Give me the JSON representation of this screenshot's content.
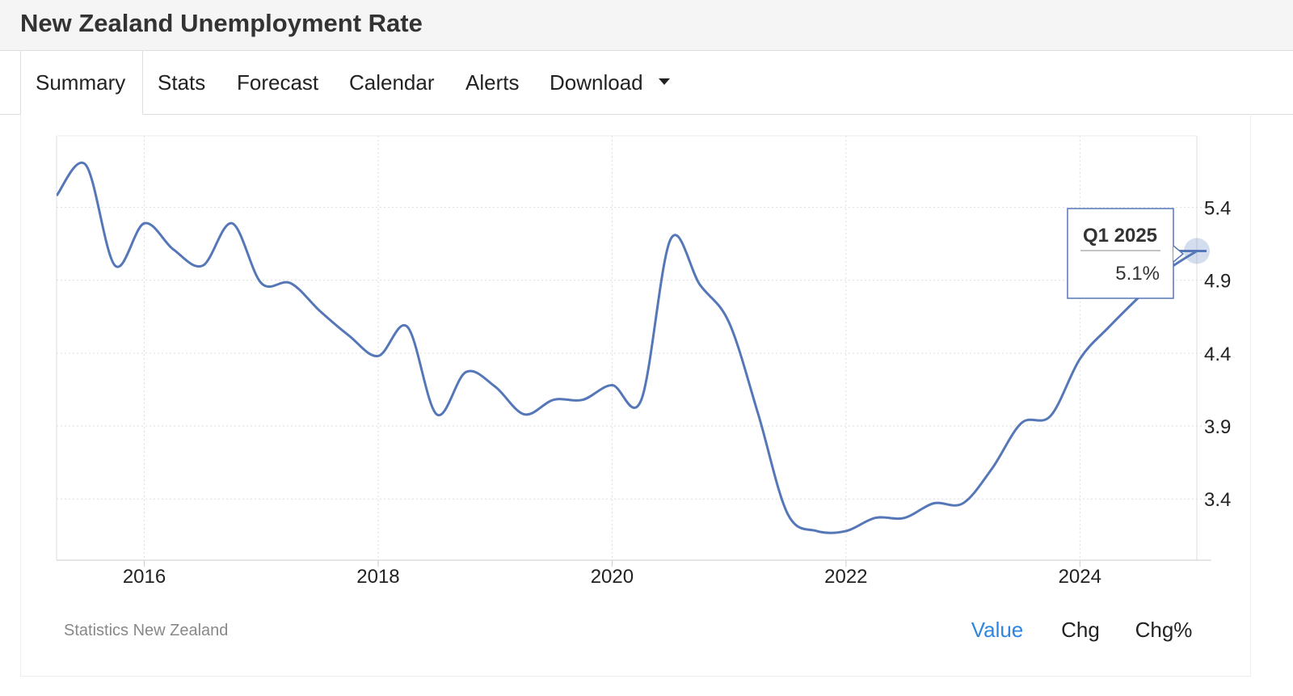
{
  "header": {
    "title": "New Zealand Unemployment Rate"
  },
  "tabs": [
    "Summary",
    "Stats",
    "Forecast",
    "Calendar",
    "Alerts",
    "Download"
  ],
  "chart_data": {
    "type": "line",
    "x": [
      2015.25,
      2015.5,
      2015.75,
      2016.0,
      2016.25,
      2016.5,
      2016.75,
      2017.0,
      2017.25,
      2017.5,
      2017.75,
      2018.0,
      2018.25,
      2018.5,
      2018.75,
      2019.0,
      2019.25,
      2019.5,
      2019.75,
      2020.0,
      2020.25,
      2020.5,
      2020.75,
      2021.0,
      2021.25,
      2021.5,
      2021.75,
      2022.0,
      2022.25,
      2022.5,
      2022.75,
      2023.0,
      2023.25,
      2023.5,
      2023.75,
      2024.0,
      2024.25,
      2024.5,
      2024.75,
      2025.0
    ],
    "series": [
      {
        "name": "Unemployment Rate",
        "color": "#5577b8",
        "values": [
          5.48,
          5.69,
          5.0,
          5.29,
          5.11,
          5.0,
          5.29,
          4.88,
          4.88,
          4.69,
          4.52,
          4.38,
          4.58,
          3.98,
          4.27,
          4.17,
          3.98,
          4.08,
          4.08,
          4.18,
          4.08,
          5.18,
          4.87,
          4.61,
          3.98,
          3.3,
          3.18,
          3.18,
          3.27,
          3.27,
          3.37,
          3.37,
          3.61,
          3.92,
          3.97,
          4.36,
          4.58,
          4.78,
          4.97,
          5.1
        ]
      }
    ],
    "xlim": [
      2015.25,
      2025.0
    ],
    "xticks": [
      2016,
      2018,
      2020,
      2022,
      2024
    ],
    "ylim": [
      2.98,
      5.89
    ],
    "yticks": [
      3.4,
      3.9,
      4.4,
      4.9,
      5.4
    ],
    "grid": true,
    "tooltip": {
      "label": "Q1 2025",
      "value_label": "5.1%"
    }
  },
  "source": "Statistics New Zealand",
  "views": {
    "options": [
      "Value",
      "Chg",
      "Chg%"
    ],
    "active": "Value",
    "active_color": "#2f86e0"
  }
}
